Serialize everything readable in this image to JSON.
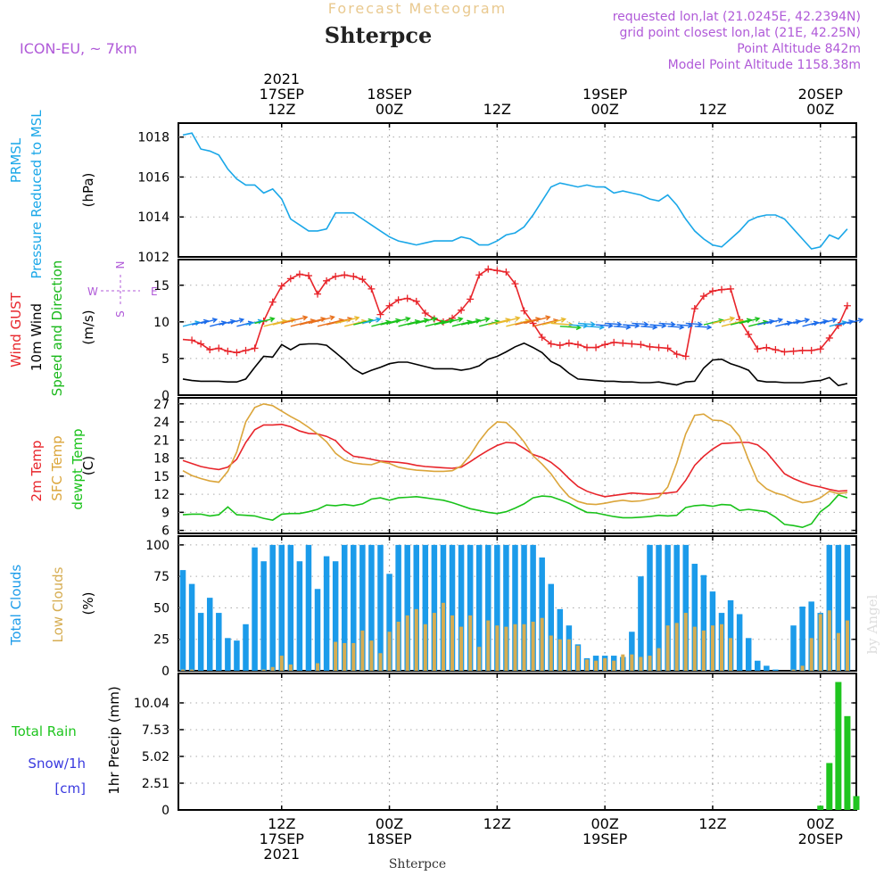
{
  "header": {
    "supertitle": "Forecast Meteogram",
    "station": "Shterpce",
    "model": "ICON-EU, ~ 7km",
    "requested": "requested lon,lat (21.0245E, 42.2394N)",
    "gridpoint": "grid point closest lon,lat (21E, 42.25N)",
    "point_altitude": "Point Altitude 842m",
    "model_altitude": "Model Point Altitude 1158.38m",
    "footer_station": "Shterpce",
    "watermark": "by Angel"
  },
  "colors": {
    "pressure": "#1aa7e8",
    "gust": "#e8252b",
    "wind": "#000000",
    "wind_label": "#19b81a",
    "temp2m": "#e8252b",
    "sfc_temp": "#dba53a",
    "dewpoint": "#19c21a",
    "total_clouds": "#1b9bea",
    "low_clouds": "#d6ad52",
    "rain": "#1fc51f",
    "snow": "#3a3adf",
    "purple": "#b05ad8"
  },
  "time_axis": {
    "top_labels": [
      {
        "t": 11,
        "lines": [
          "2021",
          "17SEP",
          "12Z"
        ]
      },
      {
        "t": 23,
        "lines": [
          "18SEP",
          "00Z"
        ]
      },
      {
        "t": 35,
        "lines": [
          "12Z"
        ]
      },
      {
        "t": 47,
        "lines": [
          "19SEP",
          "00Z"
        ]
      },
      {
        "t": 59,
        "lines": [
          "12Z"
        ]
      },
      {
        "t": 71,
        "lines": [
          "20SEP",
          "00Z"
        ]
      }
    ],
    "bottom_labels": [
      {
        "t": 11,
        "lines": [
          "12Z",
          "17SEP",
          "2021"
        ]
      },
      {
        "t": 23,
        "lines": [
          "00Z",
          "18SEP"
        ]
      },
      {
        "t": 35,
        "lines": [
          "12Z"
        ]
      },
      {
        "t": 47,
        "lines": [
          "00Z",
          "19SEP"
        ]
      },
      {
        "t": 59,
        "lines": [
          "12Z"
        ]
      },
      {
        "t": 71,
        "lines": [
          "00Z",
          "20SEP"
        ]
      }
    ]
  },
  "chart_data": [
    {
      "type": "line",
      "panel": "pressure",
      "y_title_lines": [
        "PRMSL",
        "Pressure Reduced to MSL"
      ],
      "unit": "(hPa)",
      "ylim": [
        1012,
        1018.7
      ],
      "yticks": [
        "1012",
        "1014",
        "1016",
        "1018"
      ],
      "x": "hours from 17SEP 01Z",
      "series": [
        {
          "key": "pressure",
          "values": [
            1018.1,
            1018.2,
            1017.4,
            1017.3,
            1017.1,
            1016.4,
            1015.9,
            1015.6,
            1015.6,
            1015.2,
            1015.4,
            1014.9,
            1013.9,
            1013.6,
            1013.3,
            1013.3,
            1013.4,
            1014.2,
            1014.2,
            1014.2,
            1013.9,
            1013.6,
            1013.3,
            1013.0,
            1012.8,
            1012.7,
            1012.6,
            1012.7,
            1012.8,
            1012.8,
            1012.8,
            1013.0,
            1012.9,
            1012.6,
            1012.6,
            1012.8,
            1013.1,
            1013.2,
            1013.5,
            1014.1,
            1014.8,
            1015.5,
            1015.7,
            1015.6,
            1015.5,
            1015.6,
            1015.5,
            1015.5,
            1015.2,
            1015.3,
            1015.2,
            1015.1,
            1014.9,
            1014.8,
            1015.1,
            1014.6,
            1013.9,
            1013.3,
            1012.9,
            1012.6,
            1012.5,
            1012.9,
            1013.3,
            1013.8,
            1014.0,
            1014.1,
            1014.1,
            1013.9,
            1013.4,
            1012.9,
            1012.4,
            1012.5,
            1013.1,
            1012.9,
            1013.4
          ]
        }
      ]
    },
    {
      "type": "line",
      "panel": "wind",
      "y_title_lines": [
        "Wind GUST",
        "10m Wind",
        "Speed and Direction"
      ],
      "unit": "(m/s)",
      "ylim": [
        0,
        18.5
      ],
      "yticks": [
        "0",
        "5",
        "10",
        "15"
      ],
      "compass": {
        "n": "N",
        "s": "S",
        "w": "W",
        "e": "E"
      },
      "series": [
        {
          "key": "gust",
          "values": [
            7.6,
            7.5,
            7.0,
            6.2,
            6.4,
            6.0,
            5.8,
            6.1,
            6.4,
            10.1,
            12.7,
            14.9,
            15.9,
            16.5,
            16.3,
            13.8,
            15.6,
            16.2,
            16.4,
            16.2,
            15.8,
            14.5,
            11.0,
            12.2,
            13.0,
            13.2,
            12.8,
            11.2,
            10.4,
            10.0,
            10.5,
            11.6,
            13.1,
            16.4,
            17.2,
            17.0,
            16.8,
            15.2,
            11.5,
            9.8,
            7.9,
            7.0,
            6.8,
            7.1,
            6.9,
            6.5,
            6.5,
            6.9,
            7.2,
            7.1,
            7.0,
            6.9,
            6.6,
            6.5,
            6.4,
            5.6,
            5.3,
            11.8,
            13.5,
            14.2,
            14.4,
            14.5,
            10.3,
            8.3,
            6.3,
            6.5,
            6.2,
            5.9,
            6.0,
            6.1,
            6.1,
            6.3,
            7.8,
            9.5,
            12.2
          ]
        },
        {
          "key": "wind",
          "values": [
            2.2,
            2.0,
            1.9,
            1.9,
            1.9,
            1.8,
            1.8,
            2.2,
            3.8,
            5.3,
            5.2,
            6.9,
            6.2,
            6.9,
            7.0,
            7.0,
            6.8,
            5.8,
            4.8,
            3.6,
            2.9,
            3.4,
            3.8,
            4.3,
            4.5,
            4.5,
            4.2,
            3.9,
            3.6,
            3.6,
            3.6,
            3.4,
            3.6,
            4.0,
            4.9,
            5.3,
            5.9,
            6.6,
            7.1,
            6.5,
            5.8,
            4.6,
            4.0,
            3.0,
            2.2,
            2.1,
            2.0,
            1.9,
            1.9,
            1.8,
            1.8,
            1.7,
            1.7,
            1.8,
            1.6,
            1.4,
            1.8,
            1.9,
            3.7,
            4.8,
            4.9,
            4.3,
            3.9,
            3.4,
            2.0,
            1.8,
            1.8,
            1.7,
            1.7,
            1.7,
            1.9,
            2.0,
            2.4,
            1.3,
            1.6
          ]
        }
      ]
    },
    {
      "type": "line",
      "panel": "temperature",
      "y_title_lines": [
        "2m Temp",
        "SFC Temp",
        "dewpt Temp"
      ],
      "unit": "(C)",
      "ylim": [
        5.5,
        28
      ],
      "yticks": [
        "6",
        "9",
        "12",
        "15",
        "18",
        "21",
        "24",
        "27"
      ],
      "series": [
        {
          "key": "temp2m",
          "values": [
            17.6,
            17.1,
            16.6,
            16.3,
            16.1,
            16.5,
            17.8,
            20.6,
            22.7,
            23.5,
            23.5,
            23.6,
            23.2,
            22.5,
            22.1,
            22.0,
            21.6,
            20.9,
            19.3,
            18.3,
            18.1,
            17.8,
            17.5,
            17.4,
            17.3,
            17.1,
            16.8,
            16.6,
            16.5,
            16.4,
            16.3,
            16.5,
            17.4,
            18.4,
            19.3,
            20.1,
            20.6,
            20.5,
            19.6,
            18.6,
            18.1,
            17.3,
            16.1,
            14.6,
            13.3,
            12.5,
            12.0,
            11.6,
            11.8,
            12.0,
            12.2,
            12.1,
            12.0,
            12.1,
            12.2,
            12.4,
            14.3,
            16.8,
            18.3,
            19.5,
            20.4,
            20.5,
            20.6,
            20.6,
            20.2,
            19.0,
            17.2,
            15.4,
            14.6,
            14.0,
            13.5,
            13.2,
            12.8,
            12.5,
            12.6
          ]
        },
        {
          "key": "sfc_temp",
          "values": [
            15.9,
            15.1,
            14.6,
            14.2,
            14.0,
            15.8,
            19.0,
            24.0,
            26.4,
            27.0,
            26.7,
            25.8,
            24.9,
            24.1,
            23.1,
            22.0,
            20.7,
            18.8,
            17.7,
            17.2,
            17.0,
            16.9,
            17.4,
            17.1,
            16.5,
            16.2,
            16.0,
            15.9,
            15.8,
            15.8,
            15.9,
            16.7,
            18.5,
            20.8,
            22.7,
            24.0,
            23.9,
            22.5,
            20.7,
            18.4,
            17.0,
            15.4,
            13.3,
            11.6,
            10.8,
            10.4,
            10.3,
            10.5,
            10.8,
            11.0,
            10.8,
            10.9,
            11.2,
            11.5,
            13.2,
            17.2,
            22.0,
            25.1,
            25.3,
            24.3,
            24.2,
            23.4,
            21.6,
            17.7,
            14.2,
            12.9,
            12.2,
            11.8,
            11.1,
            10.6,
            10.8,
            11.4,
            12.5,
            12.1,
            12.3
          ]
        },
        {
          "key": "dewpoint",
          "values": [
            8.6,
            8.7,
            8.7,
            8.4,
            8.6,
            9.9,
            8.6,
            8.5,
            8.4,
            8.0,
            7.7,
            8.7,
            8.8,
            8.8,
            9.1,
            9.5,
            10.2,
            10.1,
            10.3,
            10.1,
            10.4,
            11.2,
            11.4,
            11.0,
            11.4,
            11.5,
            11.6,
            11.4,
            11.2,
            11.0,
            10.6,
            10.1,
            9.6,
            9.3,
            9.0,
            8.8,
            9.1,
            9.7,
            10.4,
            11.4,
            11.7,
            11.6,
            11.1,
            10.5,
            9.7,
            9.0,
            8.9,
            8.6,
            8.3,
            8.1,
            8.1,
            8.2,
            8.3,
            8.5,
            8.4,
            8.5,
            9.8,
            10.1,
            10.2,
            10.0,
            10.3,
            10.2,
            9.3,
            9.5,
            9.3,
            9.1,
            8.2,
            7.0,
            6.8,
            6.5,
            7.1,
            9.1,
            10.2,
            11.9,
            11.4
          ]
        }
      ]
    },
    {
      "type": "bar",
      "panel": "clouds",
      "y_title_lines": [
        "Total Clouds",
        "Low Clouds"
      ],
      "unit": "(%)",
      "ylim": [
        0,
        107
      ],
      "yticks": [
        "0",
        "25",
        "50",
        "75",
        "100"
      ],
      "series": [
        {
          "key": "total_clouds",
          "values": [
            80,
            69,
            46,
            58,
            46,
            26,
            24,
            37,
            98,
            87,
            100,
            100,
            100,
            87,
            100,
            65,
            91,
            87,
            100,
            100,
            100,
            100,
            100,
            77,
            100,
            100,
            100,
            100,
            100,
            100,
            100,
            100,
            100,
            100,
            100,
            100,
            100,
            100,
            100,
            100,
            90,
            69,
            49,
            36,
            21,
            10,
            12,
            12,
            12,
            11,
            31,
            75,
            100,
            100,
            100,
            100,
            100,
            85,
            76,
            63,
            46,
            56,
            45,
            26,
            8,
            4,
            1,
            0,
            36,
            51,
            55,
            46,
            100,
            100,
            100
          ]
        },
        {
          "key": "low_clouds",
          "values": [
            1,
            1,
            0,
            0,
            0,
            0,
            0,
            0,
            0,
            1,
            3,
            12,
            5,
            0,
            0,
            6,
            0,
            23,
            22,
            22,
            32,
            24,
            14,
            31,
            39,
            44,
            49,
            37,
            46,
            54,
            44,
            35,
            44,
            19,
            40,
            36,
            35,
            37,
            37,
            39,
            42,
            28,
            25,
            25,
            20,
            9,
            8,
            10,
            8,
            13,
            13,
            11,
            12,
            18,
            36,
            38,
            46,
            35,
            32,
            36,
            37,
            26,
            0,
            0,
            0,
            0,
            0,
            0,
            1,
            4,
            26,
            45,
            48,
            30,
            40
          ]
        }
      ]
    },
    {
      "type": "bar",
      "panel": "precipitation",
      "y_title_lines": [
        "1hr Precip (mm)"
      ],
      "left_labels": {
        "line1": "Total  Rain",
        "line2": "Snow/1h",
        "line3": "[cm]"
      },
      "ylim": [
        0,
        12.8
      ],
      "yticks": [
        "0",
        "2.51",
        "5.02",
        "7.53",
        "10.04"
      ],
      "series": [
        {
          "key": "rain",
          "values": [
            0,
            0,
            0,
            0,
            0,
            0,
            0,
            0,
            0,
            0,
            0,
            0,
            0,
            0,
            0,
            0,
            0,
            0,
            0,
            0,
            0,
            0,
            0,
            0,
            0,
            0,
            0,
            0,
            0,
            0,
            0,
            0,
            0,
            0,
            0,
            0,
            0,
            0,
            0,
            0,
            0,
            0,
            0,
            0,
            0,
            0,
            0,
            0,
            0,
            0,
            0,
            0,
            0,
            0,
            0,
            0,
            0,
            0,
            0,
            0,
            0,
            0,
            0,
            0,
            0,
            0,
            0,
            0,
            0,
            0,
            0,
            0.4,
            4.4,
            12.0,
            8.8,
            1.3
          ]
        }
      ]
    }
  ]
}
